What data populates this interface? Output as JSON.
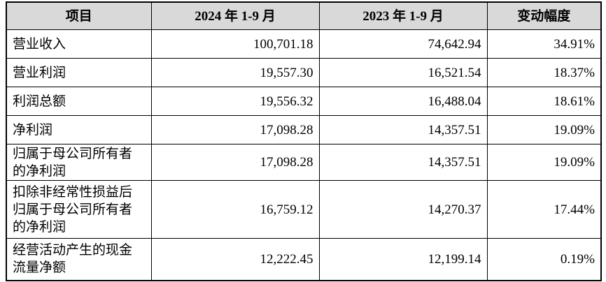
{
  "table": {
    "header": [
      "项目",
      "2024 年 1-9 月",
      "2023 年 1-9 月",
      "变动幅度"
    ],
    "rows": [
      [
        "营业收入",
        "100,701.18",
        "74,642.94",
        "34.91%"
      ],
      [
        "营业利润",
        "19,557.30",
        "16,521.54",
        "18.37%"
      ],
      [
        "利润总额",
        "19,556.32",
        "16,488.04",
        "18.61%"
      ],
      [
        "净利润",
        "17,098.28",
        "14,357.51",
        "19.09%"
      ],
      [
        "归属于母公司所有者的净利润",
        "17,098.28",
        "14,357.51",
        "19.09%"
      ],
      [
        "扣除非经常性损益后归属于母公司所有者的净利润",
        "16,759.12",
        "14,270.37",
        "17.44%"
      ],
      [
        "经营活动产生的现金流量净额",
        "12,222.45",
        "12,199.14",
        "0.19%"
      ]
    ]
  }
}
